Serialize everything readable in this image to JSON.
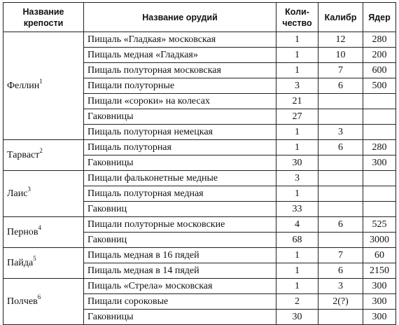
{
  "headers": {
    "fortress": [
      "Название",
      "крепости"
    ],
    "weapon": "Название орудий",
    "quantity": [
      "Коли-",
      "чество"
    ],
    "caliber": "Калибр",
    "shots": "Ядер"
  },
  "groups": [
    {
      "fortress": "Феллин",
      "note": "1",
      "rows": [
        {
          "weapon": "Пищаль «Гладкая» московская",
          "quantity": "1",
          "caliber": "12",
          "shots": "280"
        },
        {
          "weapon": "Пищаль медная «Гладкая»",
          "quantity": "1",
          "caliber": "10",
          "shots": "200"
        },
        {
          "weapon": "Пищаль полуторная московская",
          "quantity": "1",
          "caliber": "7",
          "shots": "600"
        },
        {
          "weapon": "Пищали полуторные",
          "quantity": "3",
          "caliber": "6",
          "shots": "500"
        },
        {
          "weapon": "Пищали «сороки» на колесах",
          "quantity": "21",
          "caliber": "",
          "shots": ""
        },
        {
          "weapon": "Гаковницы",
          "quantity": "27",
          "caliber": "",
          "shots": ""
        },
        {
          "weapon": "Пищаль полуторная немецкая",
          "quantity": "1",
          "caliber": "3",
          "shots": ""
        }
      ]
    },
    {
      "fortress": "Тарваст",
      "note": "2",
      "rows": [
        {
          "weapon": "Пищаль полуторная",
          "quantity": "1",
          "caliber": "6",
          "shots": "280"
        },
        {
          "weapon": "Гаковницы",
          "quantity": "30",
          "caliber": "",
          "shots": "300"
        }
      ]
    },
    {
      "fortress": "Лаис",
      "note": "3",
      "rows": [
        {
          "weapon": "Пищали фальконетные медные",
          "quantity": "3",
          "caliber": "",
          "shots": ""
        },
        {
          "weapon": "Пищаль полуторная медная",
          "quantity": "1",
          "caliber": "",
          "shots": ""
        },
        {
          "weapon": "Гаковниц",
          "quantity": "33",
          "caliber": "",
          "shots": ""
        }
      ]
    },
    {
      "fortress": "Пернов",
      "note": "4",
      "rows": [
        {
          "weapon": "Пищали полуторные московские",
          "quantity": "4",
          "caliber": "6",
          "shots": "525"
        },
        {
          "weapon": "Гаковниц",
          "quantity": "68",
          "caliber": "",
          "shots": "3000"
        }
      ]
    },
    {
      "fortress": "Пайда",
      "note": "5",
      "rows": [
        {
          "weapon": "Пищаль медная в 16 пядей",
          "quantity": "1",
          "caliber": "7",
          "shots": "60"
        },
        {
          "weapon": "Пищаль медная в 14 пядей",
          "quantity": "1",
          "caliber": "6",
          "shots": "2150"
        }
      ]
    },
    {
      "fortress": "Полчев",
      "note": "6",
      "rows": [
        {
          "weapon": "Пищаль «Стрела» московская",
          "quantity": "1",
          "caliber": "3",
          "shots": "300"
        },
        {
          "weapon": "Пищали сороковые",
          "quantity": "2",
          "caliber": "2(?)",
          "shots": "300"
        },
        {
          "weapon": "Гаковницы",
          "quantity": "30",
          "caliber": "",
          "shots": "300"
        }
      ]
    }
  ]
}
